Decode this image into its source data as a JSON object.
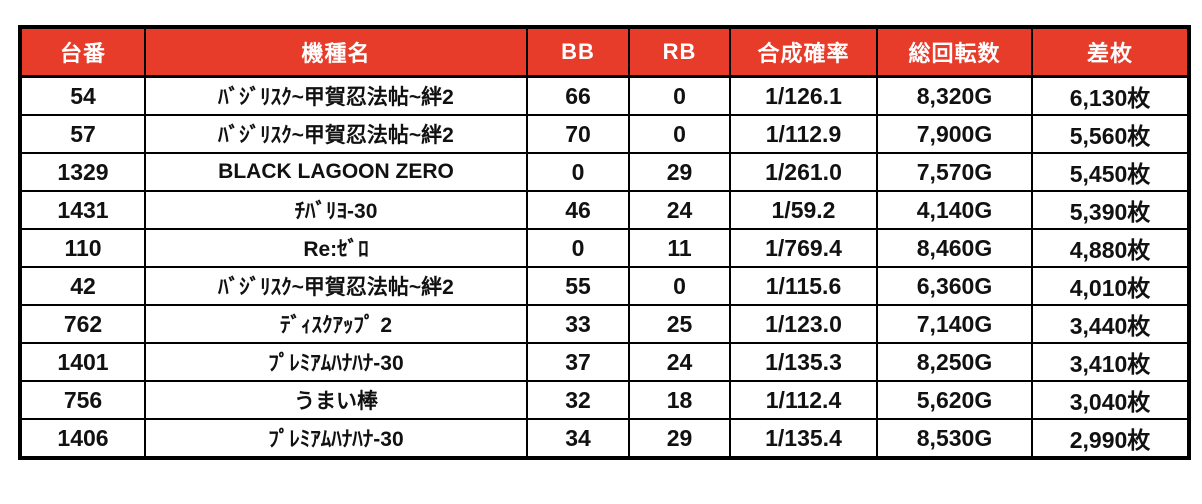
{
  "chart_data": {
    "type": "table",
    "title": "",
    "columns": [
      "台番",
      "機種名",
      "BB",
      "RB",
      "合成確率",
      "総回転数",
      "差枚"
    ],
    "rows": [
      [
        "54",
        "ﾊﾞｼﾞﾘｽｸ~甲賀忍法帖~絆2",
        "66",
        "0",
        "1/126.1",
        "8,320G",
        "6,130枚"
      ],
      [
        "57",
        "ﾊﾞｼﾞﾘｽｸ~甲賀忍法帖~絆2",
        "70",
        "0",
        "1/112.9",
        "7,900G",
        "5,560枚"
      ],
      [
        "1329",
        "BLACK LAGOON ZERO",
        "0",
        "29",
        "1/261.0",
        "7,570G",
        "5,450枚"
      ],
      [
        "1431",
        "ﾁﾊﾞﾘﾖ-30",
        "46",
        "24",
        "1/59.2",
        "4,140G",
        "5,390枚"
      ],
      [
        "110",
        "Re:ｾﾞﾛ",
        "0",
        "11",
        "1/769.4",
        "8,460G",
        "4,880枚"
      ],
      [
        "42",
        "ﾊﾞｼﾞﾘｽｸ~甲賀忍法帖~絆2",
        "55",
        "0",
        "1/115.6",
        "6,360G",
        "4,010枚"
      ],
      [
        "762",
        "ﾃﾞｨｽｸｱｯﾌﾟ 2",
        "33",
        "25",
        "1/123.0",
        "7,140G",
        "3,440枚"
      ],
      [
        "1401",
        "ﾌﾟﾚﾐｱﾑﾊﾅﾊﾅ-30",
        "37",
        "24",
        "1/135.3",
        "8,250G",
        "3,410枚"
      ],
      [
        "756",
        "うまい棒",
        "32",
        "18",
        "1/112.4",
        "5,620G",
        "3,040枚"
      ],
      [
        "1406",
        "ﾌﾟﾚﾐｱﾑﾊﾅﾊﾅ-30",
        "34",
        "29",
        "1/135.4",
        "8,530G",
        "2,990枚"
      ]
    ],
    "colors": {
      "header_bg": "#E83C2A",
      "header_text": "#FFFFFF",
      "border": "#000000",
      "body_text": "#111111",
      "background": "#FFFFFF"
    },
    "layout_hints": {
      "grid": "on",
      "header_position": "top"
    }
  }
}
